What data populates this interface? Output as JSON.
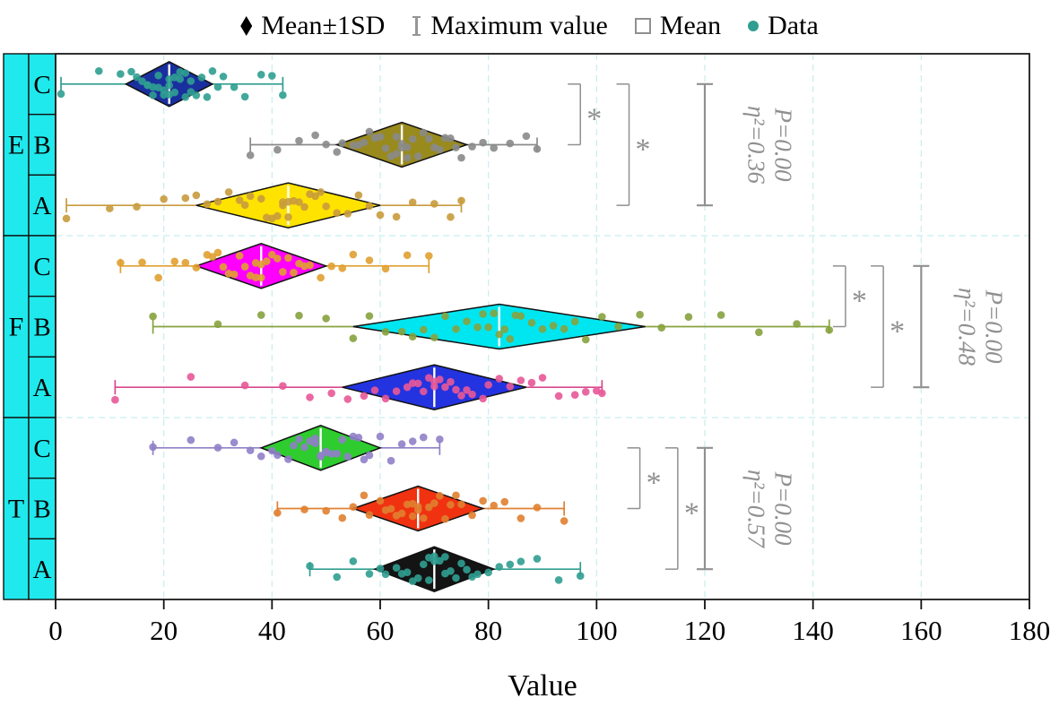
{
  "legend": {
    "items": [
      {
        "id": "mean-sd",
        "glyph": "diamond",
        "color": "#000000",
        "label": "Mean±1SD"
      },
      {
        "id": "maximum-value",
        "glyph": "ibar",
        "color": "#969696",
        "label": "Maximum value"
      },
      {
        "id": "mean",
        "glyph": "square",
        "color": "#909090",
        "label": "Mean"
      },
      {
        "id": "data",
        "glyph": "dot",
        "color": "#2f9e90",
        "label": "Data"
      }
    ]
  },
  "colors": {
    "label_box_fill": "#1fe9ec",
    "grid": "#c8eded",
    "annotation": "#909090",
    "plot_border": "#1a1a1a",
    "mean_line": "#ffffff"
  },
  "chart_data": {
    "type": "scatter",
    "variant": "diamond-distribution-plot",
    "title": "",
    "xlabel": "Value",
    "ylabel": "",
    "xlim": [
      0,
      180
    ],
    "xticks": [
      0,
      20,
      40,
      60,
      80,
      100,
      120,
      140,
      160,
      180
    ],
    "grid": "vertical-dashed-cyan",
    "legend_position": "top-center",
    "groups": [
      {
        "label": "E",
        "eta_squared_label": "η²=0.36",
        "p_label": "P=0.00",
        "significance_stars": [
          "*",
          "*"
        ],
        "annot_x": {
          "bracket1": 97,
          "bracket2": 106,
          "ibar": 120,
          "text": 128
        },
        "rows": [
          {
            "label": "C",
            "mean": 21,
            "sd": 8,
            "min": 1,
            "max": 42,
            "diamond_color": "#1a2f9e",
            "dot_color": "#2f9e90",
            "whisker_color": "#2f9e90",
            "points": [
              1,
              8,
              12,
              14,
              15,
              16,
              17,
              17,
              18,
              18,
              19,
              19,
              20,
              20,
              21,
              21,
              21,
              22,
              22,
              23,
              23,
              24,
              24,
              25,
              25,
              26,
              27,
              28,
              29,
              30,
              31,
              33,
              35,
              38,
              40,
              42
            ]
          },
          {
            "label": "B",
            "mean": 64,
            "sd": 12,
            "min": 36,
            "max": 89,
            "diamond_color": "#998a1e",
            "dot_color": "#8a8a8a",
            "whisker_color": "#8a8a8a",
            "points": [
              36,
              41,
              45,
              48,
              50,
              52,
              53,
              55,
              56,
              57,
              58,
              59,
              60,
              61,
              62,
              63,
              63,
              64,
              64,
              65,
              65,
              66,
              67,
              68,
              69,
              70,
              71,
              72,
              73,
              74,
              75,
              77,
              79,
              81,
              84,
              87,
              89
            ]
          },
          {
            "label": "A",
            "mean": 43,
            "sd": 17,
            "min": 2,
            "max": 75,
            "diamond_color": "#ffe300",
            "dot_color": "#c89b3c",
            "whisker_color": "#c89b3c",
            "points": [
              2,
              10,
              15,
              20,
              24,
              26,
              28,
              30,
              32,
              34,
              35,
              36,
              38,
              39,
              40,
              41,
              42,
              42,
              43,
              43,
              44,
              45,
              46,
              47,
              48,
              49,
              50,
              52,
              54,
              56,
              58,
              60,
              63,
              66,
              70,
              73,
              75
            ]
          }
        ]
      },
      {
        "label": "F",
        "eta_squared_label": "η²=0.48",
        "p_label": "P=0.00",
        "significance_stars": [
          "*",
          "*"
        ],
        "annot_x": {
          "bracket1": 146,
          "bracket2": 153,
          "ibar": 160,
          "text": 167
        },
        "rows": [
          {
            "label": "C",
            "mean": 38,
            "sd": 12,
            "min": 12,
            "max": 69,
            "diamond_color": "#ff00ff",
            "dot_color": "#e0a030",
            "whisker_color": "#e0a030",
            "points": [
              12,
              16,
              19,
              22,
              24,
              26,
              28,
              29,
              30,
              31,
              32,
              33,
              34,
              35,
              36,
              37,
              37,
              38,
              38,
              39,
              40,
              41,
              42,
              43,
              44,
              45,
              46,
              47,
              49,
              51,
              53,
              55,
              58,
              61,
              65,
              69
            ]
          },
          {
            "label": "B",
            "mean": 82,
            "sd": 27,
            "min": 18,
            "max": 143,
            "diamond_color": "#00e6f0",
            "dot_color": "#86a23e",
            "whisker_color": "#86a23e",
            "points": [
              18,
              30,
              38,
              45,
              50,
              55,
              58,
              61,
              64,
              66,
              68,
              70,
              72,
              74,
              76,
              78,
              79,
              80,
              81,
              82,
              83,
              84,
              85,
              86,
              88,
              90,
              92,
              94,
              96,
              98,
              101,
              104,
              108,
              112,
              117,
              123,
              130,
              137,
              143
            ]
          },
          {
            "label": "A",
            "mean": 70,
            "sd": 17,
            "min": 11,
            "max": 101,
            "diamond_color": "#2433e0",
            "dot_color": "#e85898",
            "whisker_color": "#d8488c",
            "points": [
              11,
              25,
              35,
              42,
              47,
              51,
              54,
              57,
              59,
              61,
              63,
              65,
              66,
              67,
              68,
              69,
              70,
              70,
              71,
              72,
              73,
              74,
              75,
              76,
              77,
              79,
              80,
              82,
              84,
              86,
              88,
              90,
              93,
              96,
              98,
              100,
              101
            ]
          }
        ]
      },
      {
        "label": "T",
        "eta_squared_label": "η²=0.57",
        "p_label": "P=0.00",
        "significance_stars": [
          "*",
          "*"
        ],
        "annot_x": {
          "bracket1": 108,
          "bracket2": 115,
          "ibar": 120,
          "text": 128
        },
        "rows": [
          {
            "label": "C",
            "mean": 49,
            "sd": 11,
            "min": 18,
            "max": 71,
            "diamond_color": "#2ecc2e",
            "dot_color": "#9080c8",
            "whisker_color": "#9080c8",
            "points": [
              18,
              25,
              30,
              33,
              36,
              38,
              40,
              41,
              43,
              44,
              45,
              46,
              47,
              48,
              48,
              49,
              49,
              50,
              50,
              51,
              52,
              53,
              54,
              55,
              56,
              57,
              58,
              60,
              62,
              64,
              66,
              68,
              71
            ]
          },
          {
            "label": "B",
            "mean": 67,
            "sd": 12,
            "min": 41,
            "max": 94,
            "diamond_color": "#f03210",
            "dot_color": "#e08030",
            "whisker_color": "#e08030",
            "points": [
              41,
              46,
              50,
              53,
              55,
              57,
              58,
              60,
              61,
              62,
              63,
              64,
              65,
              66,
              66,
              67,
              67,
              68,
              69,
              70,
              71,
              72,
              73,
              74,
              75,
              77,
              79,
              81,
              83,
              86,
              89,
              94
            ]
          },
          {
            "label": "A",
            "mean": 70,
            "sd": 11,
            "min": 47,
            "max": 97,
            "diamond_color": "#141414",
            "dot_color": "#2f9e90",
            "whisker_color": "#2f9e90",
            "points": [
              47,
              52,
              55,
              58,
              60,
              61,
              63,
              64,
              65,
              66,
              67,
              68,
              69,
              69,
              70,
              70,
              71,
              72,
              72,
              73,
              74,
              75,
              76,
              77,
              78,
              80,
              82,
              84,
              86,
              89,
              93,
              97
            ]
          }
        ]
      }
    ]
  }
}
